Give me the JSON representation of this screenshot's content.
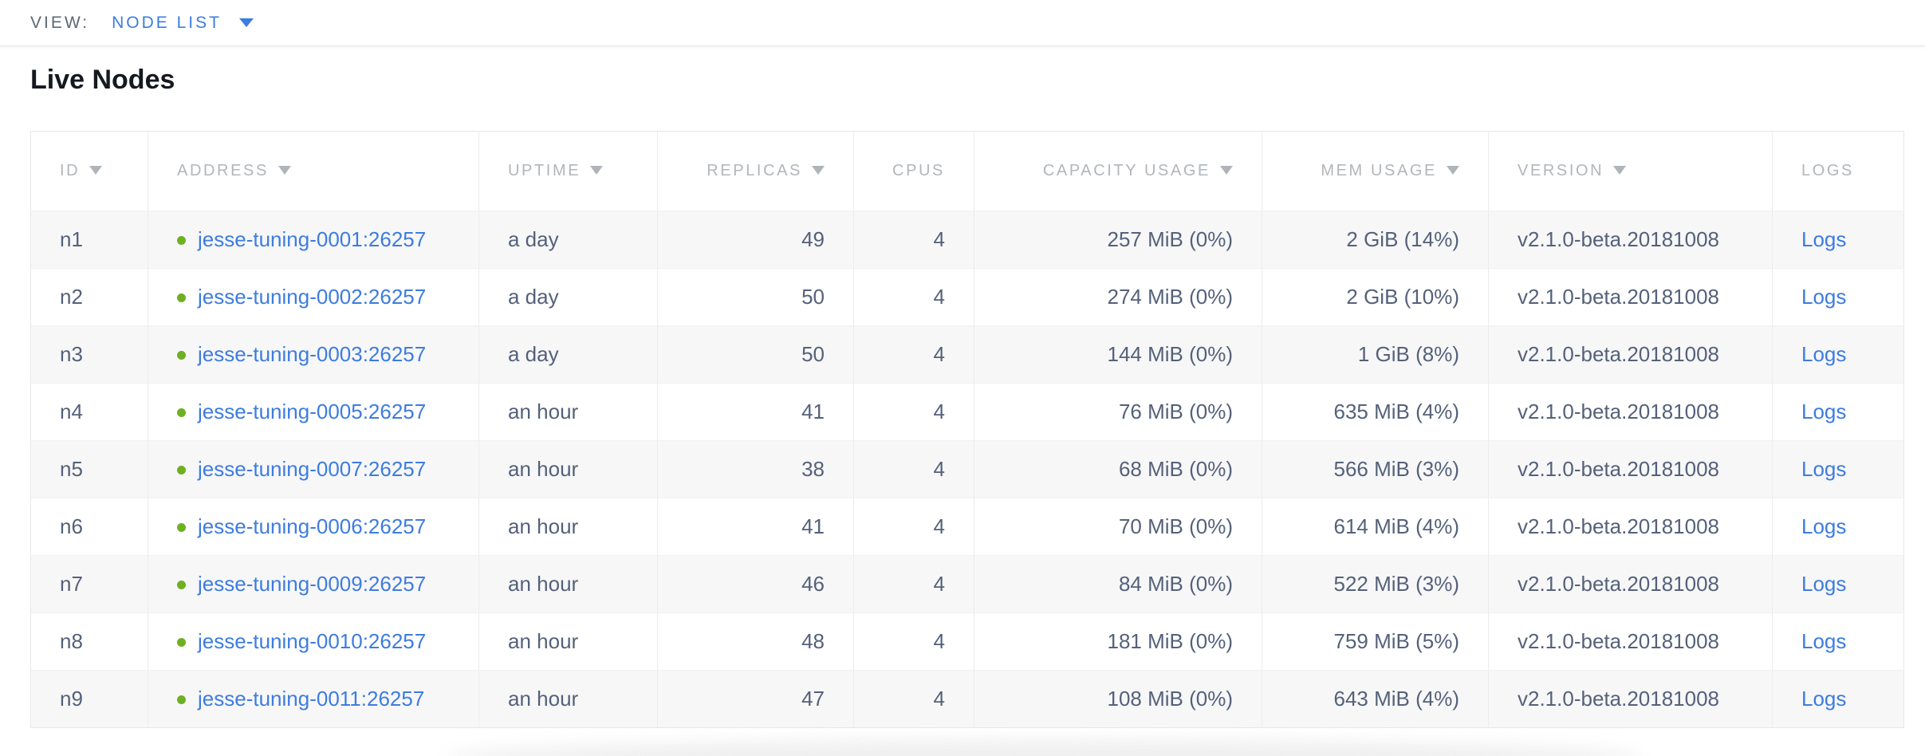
{
  "view_bar": {
    "label": "VIEW:",
    "selected": "NODE LIST"
  },
  "page": {
    "title": "Live Nodes"
  },
  "colors": {
    "accent_blue": "#3d7ce0",
    "healthy_green": "#6fb022",
    "header_gray": "#b2b6ba",
    "cell_text": "#55617a"
  },
  "table": {
    "columns": [
      {
        "key": "id",
        "label": "ID",
        "sortable": true,
        "align": "left"
      },
      {
        "key": "address",
        "label": "ADDRESS",
        "sortable": true,
        "align": "left"
      },
      {
        "key": "uptime",
        "label": "UPTIME",
        "sortable": true,
        "align": "left"
      },
      {
        "key": "replicas",
        "label": "REPLICAS",
        "sortable": true,
        "align": "right"
      },
      {
        "key": "cpus",
        "label": "CPUS",
        "sortable": false,
        "align": "right"
      },
      {
        "key": "capacity",
        "label": "CAPACITY USAGE",
        "sortable": true,
        "align": "right"
      },
      {
        "key": "mem",
        "label": "MEM USAGE",
        "sortable": true,
        "align": "right"
      },
      {
        "key": "version",
        "label": "VERSION",
        "sortable": true,
        "align": "left"
      },
      {
        "key": "logs",
        "label": "LOGS",
        "sortable": false,
        "align": "left"
      }
    ],
    "rows": [
      {
        "id": "n1",
        "address": "jesse-tuning-0001:26257",
        "status": "healthy",
        "uptime": "a day",
        "replicas": "49",
        "cpus": "4",
        "capacity": "257 MiB (0%)",
        "mem": "2 GiB (14%)",
        "version": "v2.1.0-beta.20181008",
        "logs": "Logs"
      },
      {
        "id": "n2",
        "address": "jesse-tuning-0002:26257",
        "status": "healthy",
        "uptime": "a day",
        "replicas": "50",
        "cpus": "4",
        "capacity": "274 MiB (0%)",
        "mem": "2 GiB (10%)",
        "version": "v2.1.0-beta.20181008",
        "logs": "Logs"
      },
      {
        "id": "n3",
        "address": "jesse-tuning-0003:26257",
        "status": "healthy",
        "uptime": "a day",
        "replicas": "50",
        "cpus": "4",
        "capacity": "144 MiB (0%)",
        "mem": "1 GiB (8%)",
        "version": "v2.1.0-beta.20181008",
        "logs": "Logs"
      },
      {
        "id": "n4",
        "address": "jesse-tuning-0005:26257",
        "status": "healthy",
        "uptime": "an hour",
        "replicas": "41",
        "cpus": "4",
        "capacity": "76 MiB (0%)",
        "mem": "635 MiB (4%)",
        "version": "v2.1.0-beta.20181008",
        "logs": "Logs"
      },
      {
        "id": "n5",
        "address": "jesse-tuning-0007:26257",
        "status": "healthy",
        "uptime": "an hour",
        "replicas": "38",
        "cpus": "4",
        "capacity": "68 MiB (0%)",
        "mem": "566 MiB (3%)",
        "version": "v2.1.0-beta.20181008",
        "logs": "Logs"
      },
      {
        "id": "n6",
        "address": "jesse-tuning-0006:26257",
        "status": "healthy",
        "uptime": "an hour",
        "replicas": "41",
        "cpus": "4",
        "capacity": "70 MiB (0%)",
        "mem": "614 MiB (4%)",
        "version": "v2.1.0-beta.20181008",
        "logs": "Logs"
      },
      {
        "id": "n7",
        "address": "jesse-tuning-0009:26257",
        "status": "healthy",
        "uptime": "an hour",
        "replicas": "46",
        "cpus": "4",
        "capacity": "84 MiB (0%)",
        "mem": "522 MiB (3%)",
        "version": "v2.1.0-beta.20181008",
        "logs": "Logs"
      },
      {
        "id": "n8",
        "address": "jesse-tuning-0010:26257",
        "status": "healthy",
        "uptime": "an hour",
        "replicas": "48",
        "cpus": "4",
        "capacity": "181 MiB (0%)",
        "mem": "759 MiB (5%)",
        "version": "v2.1.0-beta.20181008",
        "logs": "Logs"
      },
      {
        "id": "n9",
        "address": "jesse-tuning-0011:26257",
        "status": "healthy",
        "uptime": "an hour",
        "replicas": "47",
        "cpus": "4",
        "capacity": "108 MiB (0%)",
        "mem": "643 MiB (4%)",
        "version": "v2.1.0-beta.20181008",
        "logs": "Logs"
      }
    ]
  }
}
